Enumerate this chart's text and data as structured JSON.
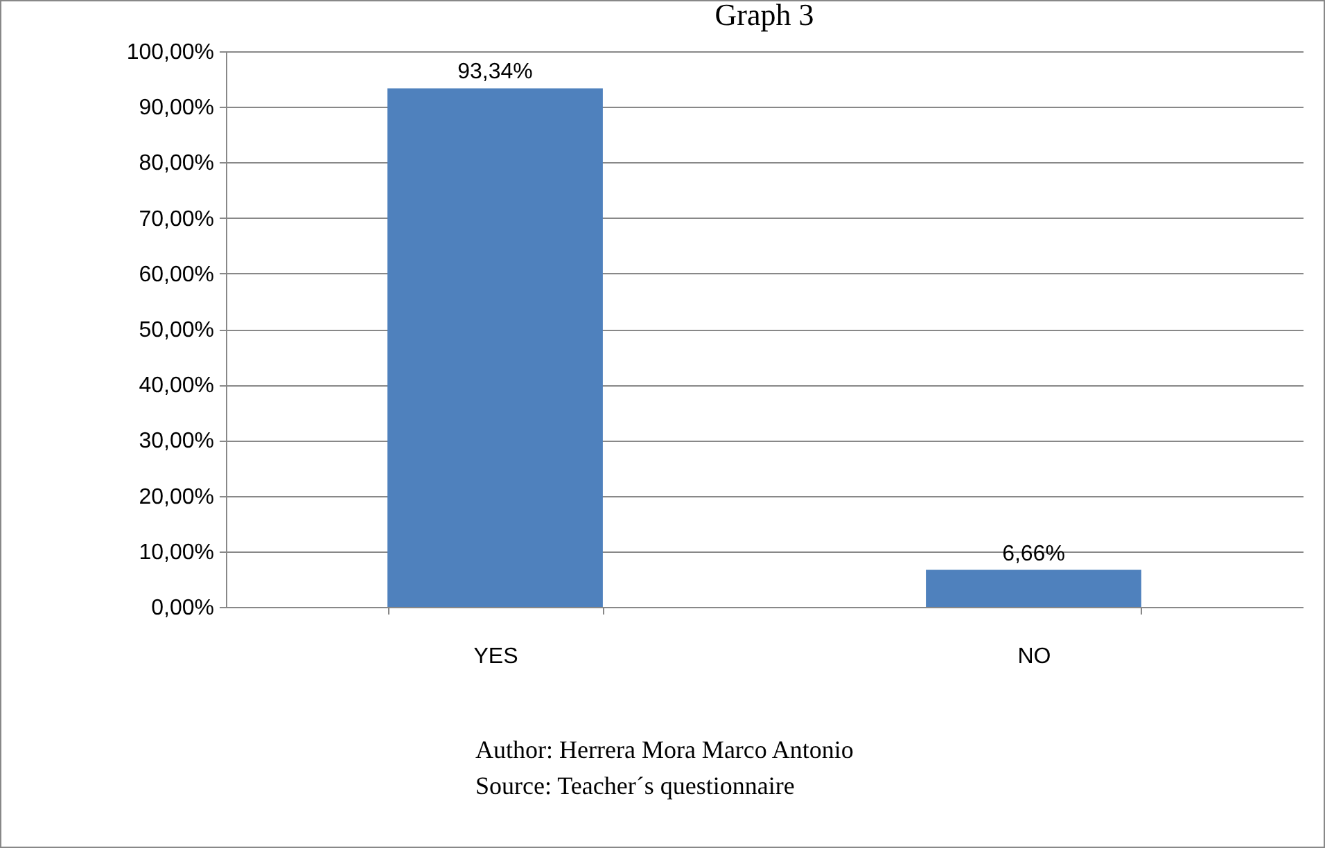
{
  "chart_data": {
    "type": "bar",
    "title": "Graph 3",
    "categories": [
      "YES",
      "NO"
    ],
    "values": [
      93.34,
      6.66
    ],
    "value_labels": [
      "93,34%",
      "6,66%"
    ],
    "color": "#4f81bd",
    "ylim": [
      0,
      100
    ],
    "yticks": [
      {
        "value": 0,
        "label": "0,00%"
      },
      {
        "value": 10,
        "label": "10,00%"
      },
      {
        "value": 20,
        "label": "20,00%"
      },
      {
        "value": 30,
        "label": "30,00%"
      },
      {
        "value": 40,
        "label": "40,00%"
      },
      {
        "value": 50,
        "label": "50,00%"
      },
      {
        "value": 60,
        "label": "60,00%"
      },
      {
        "value": 70,
        "label": "70,00%"
      },
      {
        "value": 80,
        "label": "80,00%"
      },
      {
        "value": 90,
        "label": "90,00%"
      },
      {
        "value": 100,
        "label": "100,00%"
      }
    ],
    "grid": "y",
    "annotations": [
      "Author: Herrera Mora Marco Antonio",
      "Source: Teacher´s questionnaire"
    ]
  }
}
